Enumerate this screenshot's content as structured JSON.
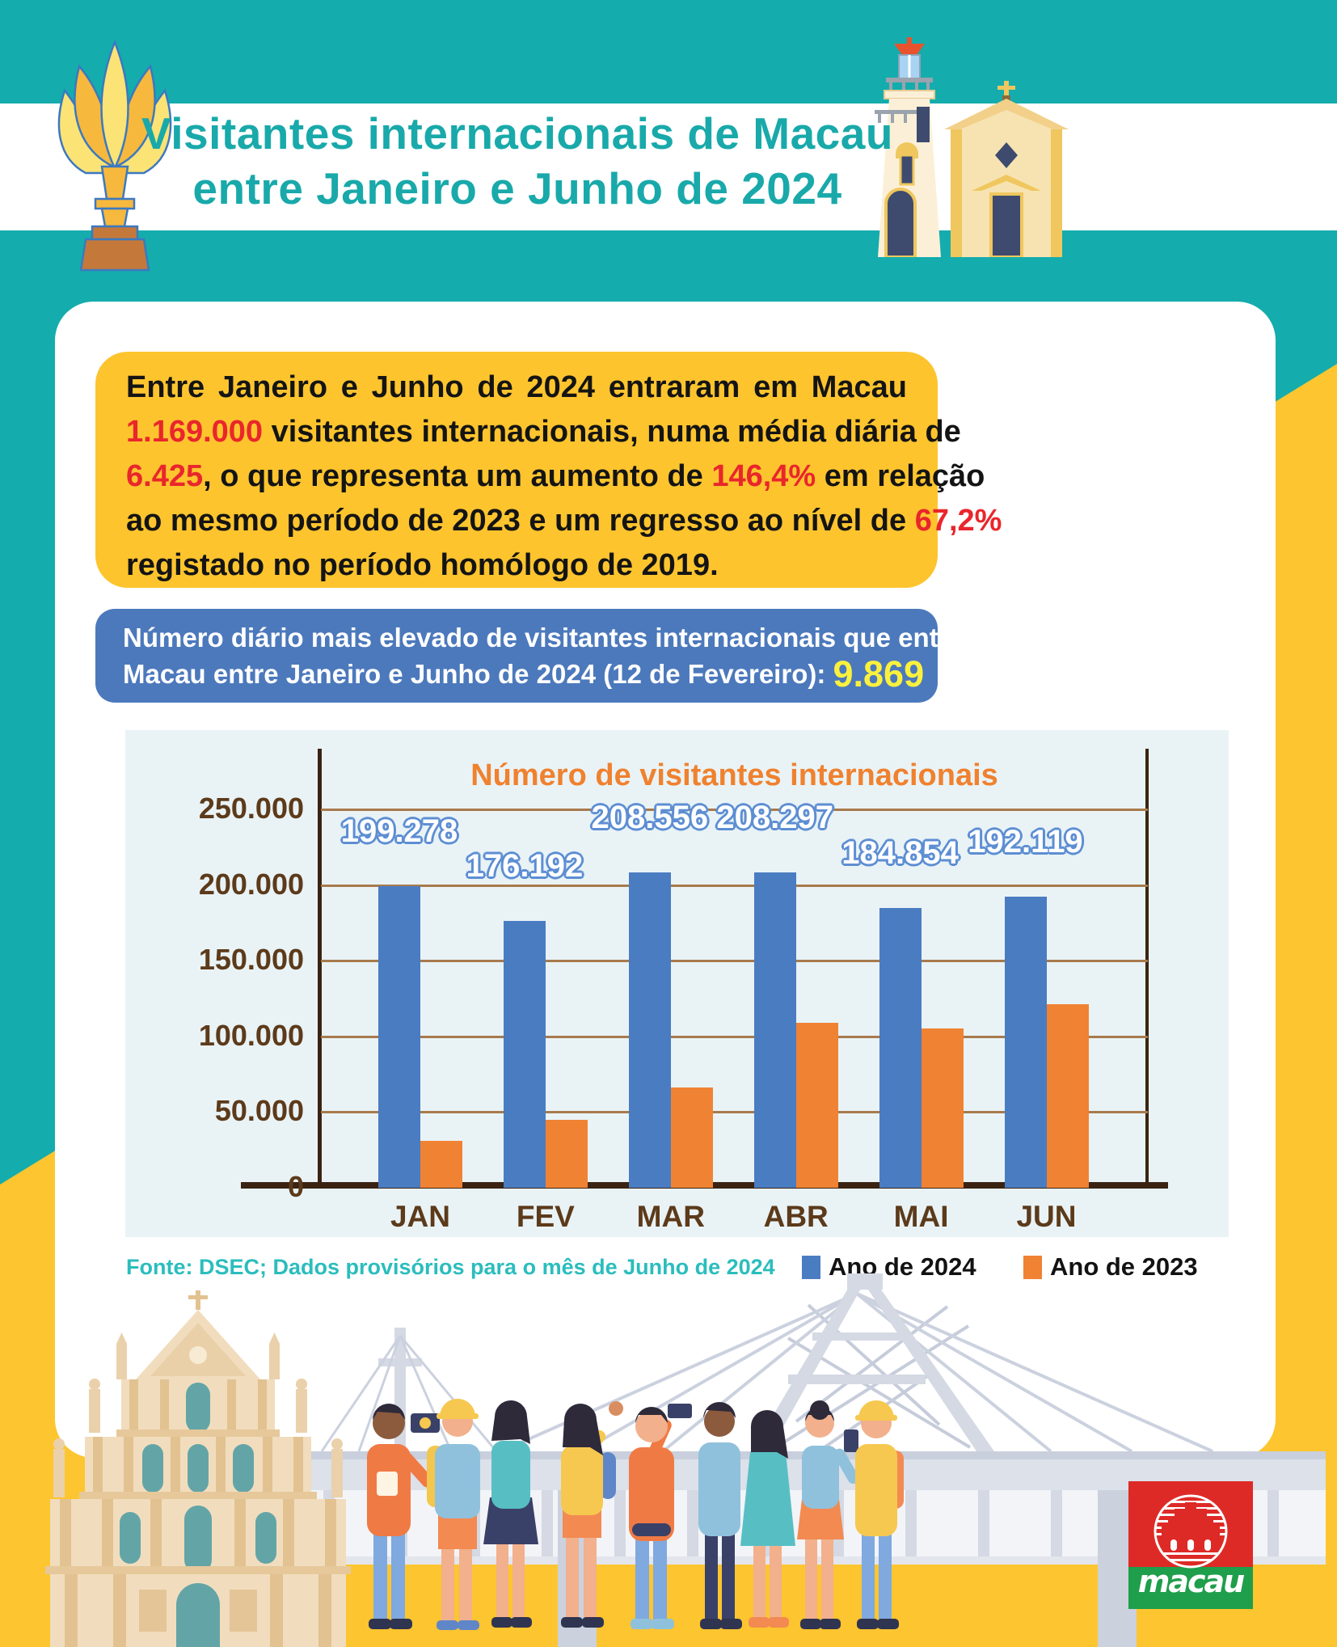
{
  "header": {
    "title_line1": "Visitantes internacionais de Macau",
    "title_line2": "entre Janeiro e Junho de 2024"
  },
  "summary": {
    "l1": "Entre Janeiro e Junho de 2024 entraram em Macau",
    "l2a": "1.169.000",
    "l2b": " visitantes internacionais, numa média diária de",
    "l3a": "6.425",
    "l3b": ", o que representa um aumento de ",
    "l3c": "146,4%",
    "l3d": " em relação",
    "l4a": "ao mesmo período de 2023 e um regresso ao nível de ",
    "l4b": "67,2%",
    "l5": "registado no período homólogo de 2019."
  },
  "highlight": {
    "line1": "Número diário mais elevado de visitantes internacionais que entraram em",
    "line2": "Macau entre Janeiro e Junho de 2024 (12 de Fevereiro): ",
    "value": "9.869"
  },
  "chart_data": {
    "type": "bar",
    "title": "Número de visitantes internacionais",
    "categories": [
      "JAN",
      "FEV",
      "MAR",
      "ABR",
      "MAI",
      "JUN"
    ],
    "series": [
      {
        "name": "Ano de 2024",
        "color": "#4A7CC2",
        "values": [
          199278,
          176192,
          208556,
          208297,
          184854,
          192119
        ],
        "labels": [
          "199.278",
          "176.192",
          "208.556",
          "208.297",
          "184.854",
          "192.119"
        ]
      },
      {
        "name": "Ano de 2023",
        "color": "#F08233",
        "values": [
          31000,
          45000,
          66000,
          109000,
          105000,
          121000
        ],
        "labels": []
      }
    ],
    "ylim": [
      0,
      250000
    ],
    "yticks": [
      {
        "label": "0",
        "value": 0
      },
      {
        "label": "50.000",
        "value": 50000
      },
      {
        "label": "100.000",
        "value": 100000
      },
      {
        "label": "150.000",
        "value": 150000
      },
      {
        "label": "200.000",
        "value": 200000
      },
      {
        "label": "250.000",
        "value": 250000
      }
    ],
    "grid": true,
    "legend_position": "bottom-right"
  },
  "legend": {
    "item1": "Ano de 2024",
    "item2": "Ano de 2023"
  },
  "source": "Fonte: DSEC; Dados provisórios para o mês de Junho de 2024",
  "logo": {
    "text": "macau"
  },
  "colors": {
    "teal_background": "#15ACAD",
    "yellow_background": "#FDC52F",
    "title_text": "#19A9AA",
    "summary_box": "#FDC42E",
    "highlight_box": "#4C79BC",
    "highlight_value": "#FBF13D",
    "red_numbers": "#E9262B",
    "bar_2024": "#4A7CC2",
    "bar_2023": "#F08233",
    "chart_panel": "#E9F3F6",
    "chart_title": "#F0812E",
    "axis_text": "#5C3A1A",
    "source_text": "#2BBDBD",
    "logo_red": "#DE2A26",
    "logo_green": "#1F9E4B"
  }
}
